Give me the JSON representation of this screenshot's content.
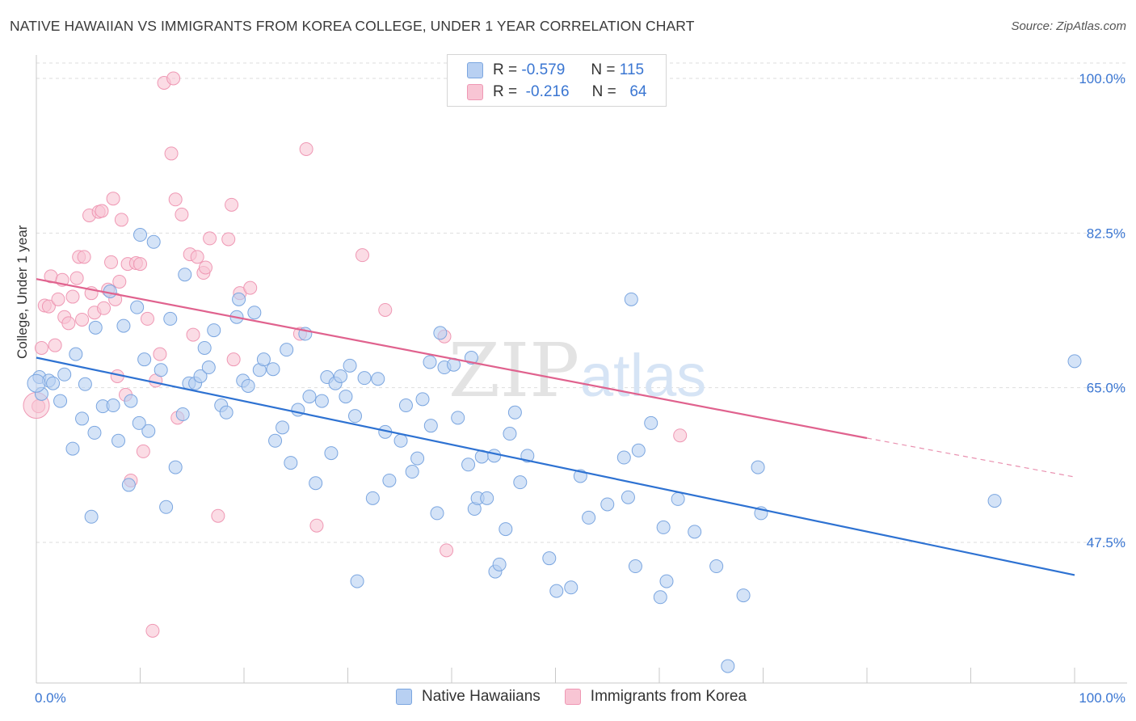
{
  "header": {
    "title": "NATIVE HAWAIIAN VS IMMIGRANTS FROM KOREA COLLEGE, UNDER 1 YEAR CORRELATION CHART",
    "source": "Source: ZipAtlas.com"
  },
  "legend": {
    "rows": [
      {
        "r_label": "R =",
        "r_value": "-0.579",
        "n_label": "N =",
        "n_value": "115"
      },
      {
        "r_label": "R =",
        "r_value": "-0.216",
        "n_label": "N =",
        "n_value": "64"
      }
    ]
  },
  "watermark": {
    "zip": "ZIP",
    "atlas": "atlas"
  },
  "colors": {
    "blue_fill": "#b8d0f2",
    "blue_stroke": "#7ba6e0",
    "blue_line": "#2e72d2",
    "pink_fill": "#f8c5d4",
    "pink_stroke": "#ef98b4",
    "pink_line": "#e0628e",
    "axis_text": "#3a76d2",
    "grid": "#dddddd"
  },
  "chart_data": {
    "type": "scatter",
    "title": "NATIVE HAWAIIAN VS IMMIGRANTS FROM KOREA COLLEGE, UNDER 1 YEAR CORRELATION CHART",
    "xlabel": "",
    "ylabel": "College, Under 1 year",
    "xlim": [
      0,
      100
    ],
    "ylim": [
      30,
      102
    ],
    "x_ticks": [
      "0.0%",
      "100.0%"
    ],
    "y_ticks": [
      {
        "value": 47.5,
        "label": "47.5%"
      },
      {
        "value": 65.0,
        "label": "65.0%"
      },
      {
        "value": 82.5,
        "label": "82.5%"
      },
      {
        "value": 100.0,
        "label": "100.0%"
      }
    ],
    "grid": true,
    "legend_position": "bottom-center",
    "series": [
      {
        "name": "Native Hawaiians",
        "color": "#7ba6e0",
        "r": -0.579,
        "n": 115,
        "trend": {
          "x": [
            0,
            100
          ],
          "y": [
            68.4,
            43.8
          ]
        },
        "points": [
          [
            0.3,
            66.2
          ],
          [
            0.5,
            64.3
          ],
          [
            1.2,
            65.8
          ],
          [
            1.6,
            65.5
          ],
          [
            2.3,
            63.5
          ],
          [
            2.7,
            66.5
          ],
          [
            3.5,
            58.1
          ],
          [
            3.8,
            68.8
          ],
          [
            4.4,
            61.5
          ],
          [
            4.7,
            65.4
          ],
          [
            5.3,
            50.4
          ],
          [
            5.7,
            71.8
          ],
          [
            6.4,
            62.9
          ],
          [
            7.1,
            75.9
          ],
          [
            7.4,
            63.0
          ],
          [
            7.9,
            59.0
          ],
          [
            8.4,
            72.0
          ],
          [
            8.9,
            54.0
          ],
          [
            9.1,
            63.5
          ],
          [
            9.7,
            74.1
          ],
          [
            10.0,
            82.3
          ],
          [
            10.4,
            68.2
          ],
          [
            10.8,
            60.1
          ],
          [
            11.3,
            81.5
          ],
          [
            12.0,
            67.0
          ],
          [
            12.9,
            72.8
          ],
          [
            13.4,
            56.0
          ],
          [
            14.1,
            62.0
          ],
          [
            14.3,
            77.8
          ],
          [
            14.7,
            65.5
          ],
          [
            15.3,
            65.5
          ],
          [
            15.8,
            66.3
          ],
          [
            16.2,
            69.5
          ],
          [
            16.6,
            67.3
          ],
          [
            17.1,
            71.5
          ],
          [
            17.8,
            63.0
          ],
          [
            18.3,
            62.2
          ],
          [
            19.3,
            73.0
          ],
          [
            19.5,
            75.0
          ],
          [
            19.9,
            65.8
          ],
          [
            20.4,
            65.2
          ],
          [
            21.0,
            73.5
          ],
          [
            21.5,
            67.0
          ],
          [
            21.9,
            68.2
          ],
          [
            22.8,
            67.1
          ],
          [
            23.0,
            59.0
          ],
          [
            23.7,
            60.5
          ],
          [
            24.1,
            69.3
          ],
          [
            24.5,
            56.5
          ],
          [
            25.2,
            62.5
          ],
          [
            25.9,
            71.1
          ],
          [
            26.3,
            64.0
          ],
          [
            26.9,
            54.2
          ],
          [
            27.5,
            63.5
          ],
          [
            28.0,
            66.2
          ],
          [
            28.4,
            57.6
          ],
          [
            28.8,
            65.5
          ],
          [
            29.3,
            66.3
          ],
          [
            29.8,
            64.0
          ],
          [
            30.2,
            67.5
          ],
          [
            30.7,
            61.8
          ],
          [
            30.9,
            43.1
          ],
          [
            31.6,
            66.1
          ],
          [
            32.4,
            52.5
          ],
          [
            32.9,
            66.0
          ],
          [
            33.6,
            60.0
          ],
          [
            34.0,
            54.5
          ],
          [
            35.1,
            59.0
          ],
          [
            35.6,
            63.0
          ],
          [
            36.2,
            55.5
          ],
          [
            36.7,
            57.0
          ],
          [
            37.2,
            63.7
          ],
          [
            37.9,
            67.9
          ],
          [
            38.0,
            60.7
          ],
          [
            38.6,
            50.8
          ],
          [
            38.9,
            71.2
          ],
          [
            39.3,
            67.3
          ],
          [
            40.2,
            67.6
          ],
          [
            40.6,
            61.6
          ],
          [
            41.6,
            56.3
          ],
          [
            41.9,
            68.4
          ],
          [
            42.2,
            51.3
          ],
          [
            42.5,
            52.5
          ],
          [
            42.9,
            57.2
          ],
          [
            43.4,
            52.5
          ],
          [
            44.1,
            57.3
          ],
          [
            44.2,
            44.2
          ],
          [
            44.6,
            45.0
          ],
          [
            45.2,
            49.0
          ],
          [
            45.6,
            59.8
          ],
          [
            46.1,
            62.2
          ],
          [
            46.6,
            54.3
          ],
          [
            47.3,
            57.3
          ],
          [
            49.4,
            45.7
          ],
          [
            50.1,
            42.0
          ],
          [
            51.5,
            42.4
          ],
          [
            52.4,
            55.0
          ],
          [
            53.2,
            50.3
          ],
          [
            55.0,
            51.8
          ],
          [
            56.6,
            57.1
          ],
          [
            57.0,
            52.6
          ],
          [
            57.3,
            75.0
          ],
          [
            57.7,
            44.8
          ],
          [
            58.0,
            57.9
          ],
          [
            59.2,
            61.0
          ],
          [
            60.1,
            41.3
          ],
          [
            60.4,
            49.2
          ],
          [
            60.7,
            43.1
          ],
          [
            61.8,
            52.4
          ],
          [
            63.4,
            48.7
          ],
          [
            65.5,
            44.8
          ],
          [
            66.6,
            33.5
          ],
          [
            68.1,
            41.5
          ],
          [
            69.5,
            56.0
          ],
          [
            69.8,
            50.8
          ],
          [
            92.3,
            52.2
          ],
          [
            100.0,
            68.0
          ],
          [
            12.5,
            51.5
          ],
          [
            5.6,
            59.9
          ],
          [
            9.9,
            61.0
          ]
        ]
      },
      {
        "name": "Immigrants from Korea",
        "color": "#ef98b4",
        "r": -0.216,
        "n": 64,
        "trend": {
          "x": [
            0,
            80
          ],
          "y": [
            77.3,
            59.3
          ]
        },
        "trend_dashed": {
          "x": [
            80,
            100
          ],
          "y": [
            59.3,
            54.9
          ]
        },
        "points": [
          [
            0.2,
            62.9
          ],
          [
            0.5,
            69.5
          ],
          [
            0.8,
            74.3
          ],
          [
            1.2,
            74.2
          ],
          [
            1.4,
            77.6
          ],
          [
            1.8,
            69.8
          ],
          [
            2.1,
            75.0
          ],
          [
            2.5,
            77.2
          ],
          [
            2.7,
            73.0
          ],
          [
            3.1,
            72.3
          ],
          [
            3.5,
            75.3
          ],
          [
            3.9,
            77.4
          ],
          [
            4.1,
            79.8
          ],
          [
            4.4,
            72.7
          ],
          [
            4.6,
            79.8
          ],
          [
            5.1,
            84.5
          ],
          [
            5.3,
            75.7
          ],
          [
            5.6,
            73.5
          ],
          [
            6.0,
            84.9
          ],
          [
            6.3,
            85.0
          ],
          [
            6.5,
            74.0
          ],
          [
            6.9,
            76.1
          ],
          [
            7.2,
            79.2
          ],
          [
            7.4,
            86.4
          ],
          [
            7.6,
            75.0
          ],
          [
            7.8,
            66.3
          ],
          [
            8.0,
            77.0
          ],
          [
            8.2,
            84.0
          ],
          [
            8.6,
            64.2
          ],
          [
            8.8,
            79.0
          ],
          [
            9.1,
            54.5
          ],
          [
            9.6,
            79.1
          ],
          [
            10.0,
            79.0
          ],
          [
            10.3,
            57.8
          ],
          [
            10.7,
            72.8
          ],
          [
            11.2,
            37.5
          ],
          [
            11.5,
            65.8
          ],
          [
            11.9,
            68.8
          ],
          [
            12.3,
            99.5
          ],
          [
            13.0,
            91.5
          ],
          [
            13.2,
            100.0
          ],
          [
            13.4,
            86.3
          ],
          [
            13.6,
            61.6
          ],
          [
            14.0,
            84.6
          ],
          [
            14.8,
            80.1
          ],
          [
            15.1,
            71.0
          ],
          [
            15.5,
            79.8
          ],
          [
            16.1,
            78.0
          ],
          [
            16.3,
            78.6
          ],
          [
            16.7,
            81.9
          ],
          [
            17.5,
            50.5
          ],
          [
            18.5,
            81.8
          ],
          [
            18.8,
            85.7
          ],
          [
            19.0,
            68.2
          ],
          [
            19.6,
            75.7
          ],
          [
            20.6,
            76.3
          ],
          [
            25.4,
            71.1
          ],
          [
            26.0,
            92.0
          ],
          [
            27.0,
            49.4
          ],
          [
            31.4,
            80.0
          ],
          [
            33.6,
            73.8
          ],
          [
            39.3,
            70.8
          ],
          [
            39.5,
            46.6
          ],
          [
            62.0,
            59.6
          ]
        ]
      }
    ]
  }
}
